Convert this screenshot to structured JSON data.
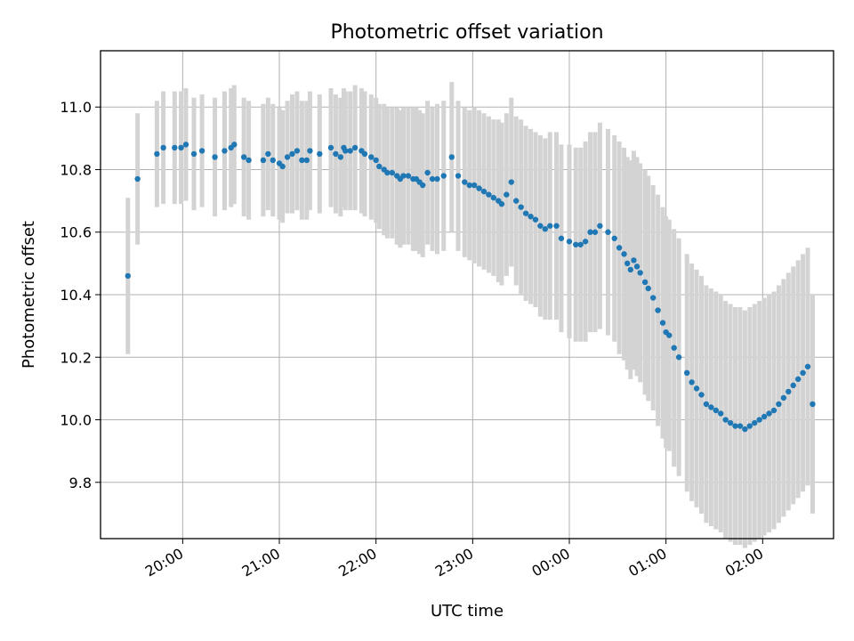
{
  "chart_data": {
    "type": "scatter",
    "title": "Photometric offset variation",
    "xlabel": "UTC time",
    "ylabel": "Photometric offset",
    "grid": true,
    "legend": "none",
    "x_ticks": [
      "20:00",
      "21:00",
      "22:00",
      "23:00",
      "00:00",
      "01:00",
      "02:00"
    ],
    "y_ticks": [
      "9.8",
      "10.0",
      "10.2",
      "10.4",
      "10.6",
      "10.8",
      "11.0"
    ],
    "xlim": [
      "19:09",
      "02:44"
    ],
    "ylim": [
      9.62,
      11.18
    ],
    "point_color": "#1f77b4",
    "error_color": "#d3d3d3",
    "series": [
      {
        "x": [
          "19:26",
          "19:32",
          "19:44",
          "19:48",
          "19:55",
          "19:59",
          "20:02",
          "20:07",
          "20:12",
          "20:20",
          "20:26",
          "20:30",
          "20:32",
          "20:38",
          "20:41",
          "20:50",
          "20:53",
          "20:56",
          "21:00",
          "21:02",
          "21:05",
          "21:08",
          "21:11",
          "21:14",
          "21:17",
          "21:19",
          "21:25",
          "21:32",
          "21:35",
          "21:38",
          "21:40",
          "21:41",
          "21:44",
          "21:47",
          "21:51",
          "21:53",
          "21:57",
          "22:00",
          "22:02",
          "22:05",
          "22:07",
          "22:10",
          "22:13",
          "22:15",
          "22:17",
          "22:20",
          "22:23",
          "22:25",
          "22:27",
          "22:29",
          "22:32",
          "22:35",
          "22:38",
          "22:42",
          "22:47",
          "22:51",
          "22:55",
          "22:58",
          "23:01",
          "23:04",
          "23:07",
          "23:10",
          "23:13",
          "23:16",
          "23:18",
          "23:21",
          "23:24",
          "23:27",
          "23:30",
          "23:33",
          "23:36",
          "23:39",
          "23:42",
          "23:45",
          "23:48",
          "23:52",
          "23:55",
          "00:00",
          "00:04",
          "00:07",
          "00:10",
          "00:13",
          "00:16",
          "00:19",
          "00:24",
          "00:28",
          "00:31",
          "00:34",
          "00:36",
          "00:38",
          "00:40",
          "00:42",
          "00:44",
          "00:47",
          "00:49",
          "00:52",
          "00:55",
          "00:58",
          "01:00",
          "01:02",
          "01:05",
          "01:08",
          "01:13",
          "01:16",
          "01:19",
          "01:22",
          "01:25",
          "01:28",
          "01:31",
          "01:34",
          "01:37",
          "01:40",
          "01:43",
          "01:46",
          "01:49",
          "01:52",
          "01:55",
          "01:58",
          "02:01",
          "02:04",
          "02:07",
          "02:10",
          "02:13",
          "02:16",
          "02:19",
          "02:22",
          "02:25",
          "02:28",
          "02:31"
        ],
        "y": [
          10.46,
          10.77,
          10.85,
          10.87,
          10.87,
          10.87,
          10.88,
          10.85,
          10.86,
          10.84,
          10.86,
          10.87,
          10.88,
          10.84,
          10.83,
          10.83,
          10.85,
          10.83,
          10.82,
          10.81,
          10.84,
          10.85,
          10.86,
          10.83,
          10.83,
          10.86,
          10.85,
          10.87,
          10.85,
          10.84,
          10.87,
          10.86,
          10.86,
          10.87,
          10.86,
          10.85,
          10.84,
          10.83,
          10.81,
          10.8,
          10.79,
          10.79,
          10.78,
          10.77,
          10.78,
          10.78,
          10.77,
          10.77,
          10.76,
          10.75,
          10.79,
          10.77,
          10.77,
          10.78,
          10.84,
          10.78,
          10.76,
          10.75,
          10.75,
          10.74,
          10.73,
          10.72,
          10.71,
          10.7,
          10.69,
          10.72,
          10.76,
          10.7,
          10.68,
          10.66,
          10.65,
          10.64,
          10.62,
          10.61,
          10.62,
          10.62,
          10.58,
          10.57,
          10.56,
          10.56,
          10.57,
          10.6,
          10.6,
          10.62,
          10.6,
          10.58,
          10.55,
          10.53,
          10.5,
          10.48,
          10.51,
          10.49,
          10.47,
          10.44,
          10.42,
          10.39,
          10.35,
          10.31,
          10.28,
          10.27,
          10.23,
          10.2,
          10.15,
          10.12,
          10.1,
          10.08,
          10.05,
          10.04,
          10.03,
          10.02,
          10.0,
          9.99,
          9.98,
          9.98,
          9.97,
          9.98,
          9.99,
          10.0,
          10.01,
          10.02,
          10.03,
          10.05,
          10.07,
          10.09,
          10.11,
          10.13,
          10.15,
          10.17,
          10.05
        ],
        "err": [
          0.25,
          0.21,
          0.17,
          0.18,
          0.18,
          0.18,
          0.18,
          0.18,
          0.18,
          0.19,
          0.19,
          0.19,
          0.19,
          0.19,
          0.19,
          0.18,
          0.18,
          0.18,
          0.18,
          0.18,
          0.18,
          0.19,
          0.19,
          0.19,
          0.19,
          0.19,
          0.19,
          0.19,
          0.19,
          0.19,
          0.19,
          0.19,
          0.19,
          0.2,
          0.2,
          0.2,
          0.2,
          0.2,
          0.2,
          0.21,
          0.21,
          0.21,
          0.22,
          0.22,
          0.22,
          0.22,
          0.23,
          0.23,
          0.23,
          0.23,
          0.23,
          0.23,
          0.24,
          0.24,
          0.24,
          0.24,
          0.24,
          0.24,
          0.25,
          0.25,
          0.25,
          0.25,
          0.25,
          0.26,
          0.26,
          0.26,
          0.27,
          0.27,
          0.28,
          0.28,
          0.28,
          0.28,
          0.29,
          0.29,
          0.3,
          0.3,
          0.3,
          0.31,
          0.31,
          0.31,
          0.32,
          0.32,
          0.32,
          0.33,
          0.33,
          0.33,
          0.34,
          0.34,
          0.34,
          0.35,
          0.35,
          0.35,
          0.35,
          0.36,
          0.36,
          0.36,
          0.37,
          0.37,
          0.37,
          0.37,
          0.38,
          0.38,
          0.38,
          0.38,
          0.38,
          0.38,
          0.38,
          0.38,
          0.38,
          0.38,
          0.38,
          0.38,
          0.38,
          0.38,
          0.38,
          0.38,
          0.38,
          0.38,
          0.38,
          0.38,
          0.38,
          0.38,
          0.38,
          0.38,
          0.38,
          0.38,
          0.38,
          0.38,
          0.35
        ]
      }
    ]
  }
}
